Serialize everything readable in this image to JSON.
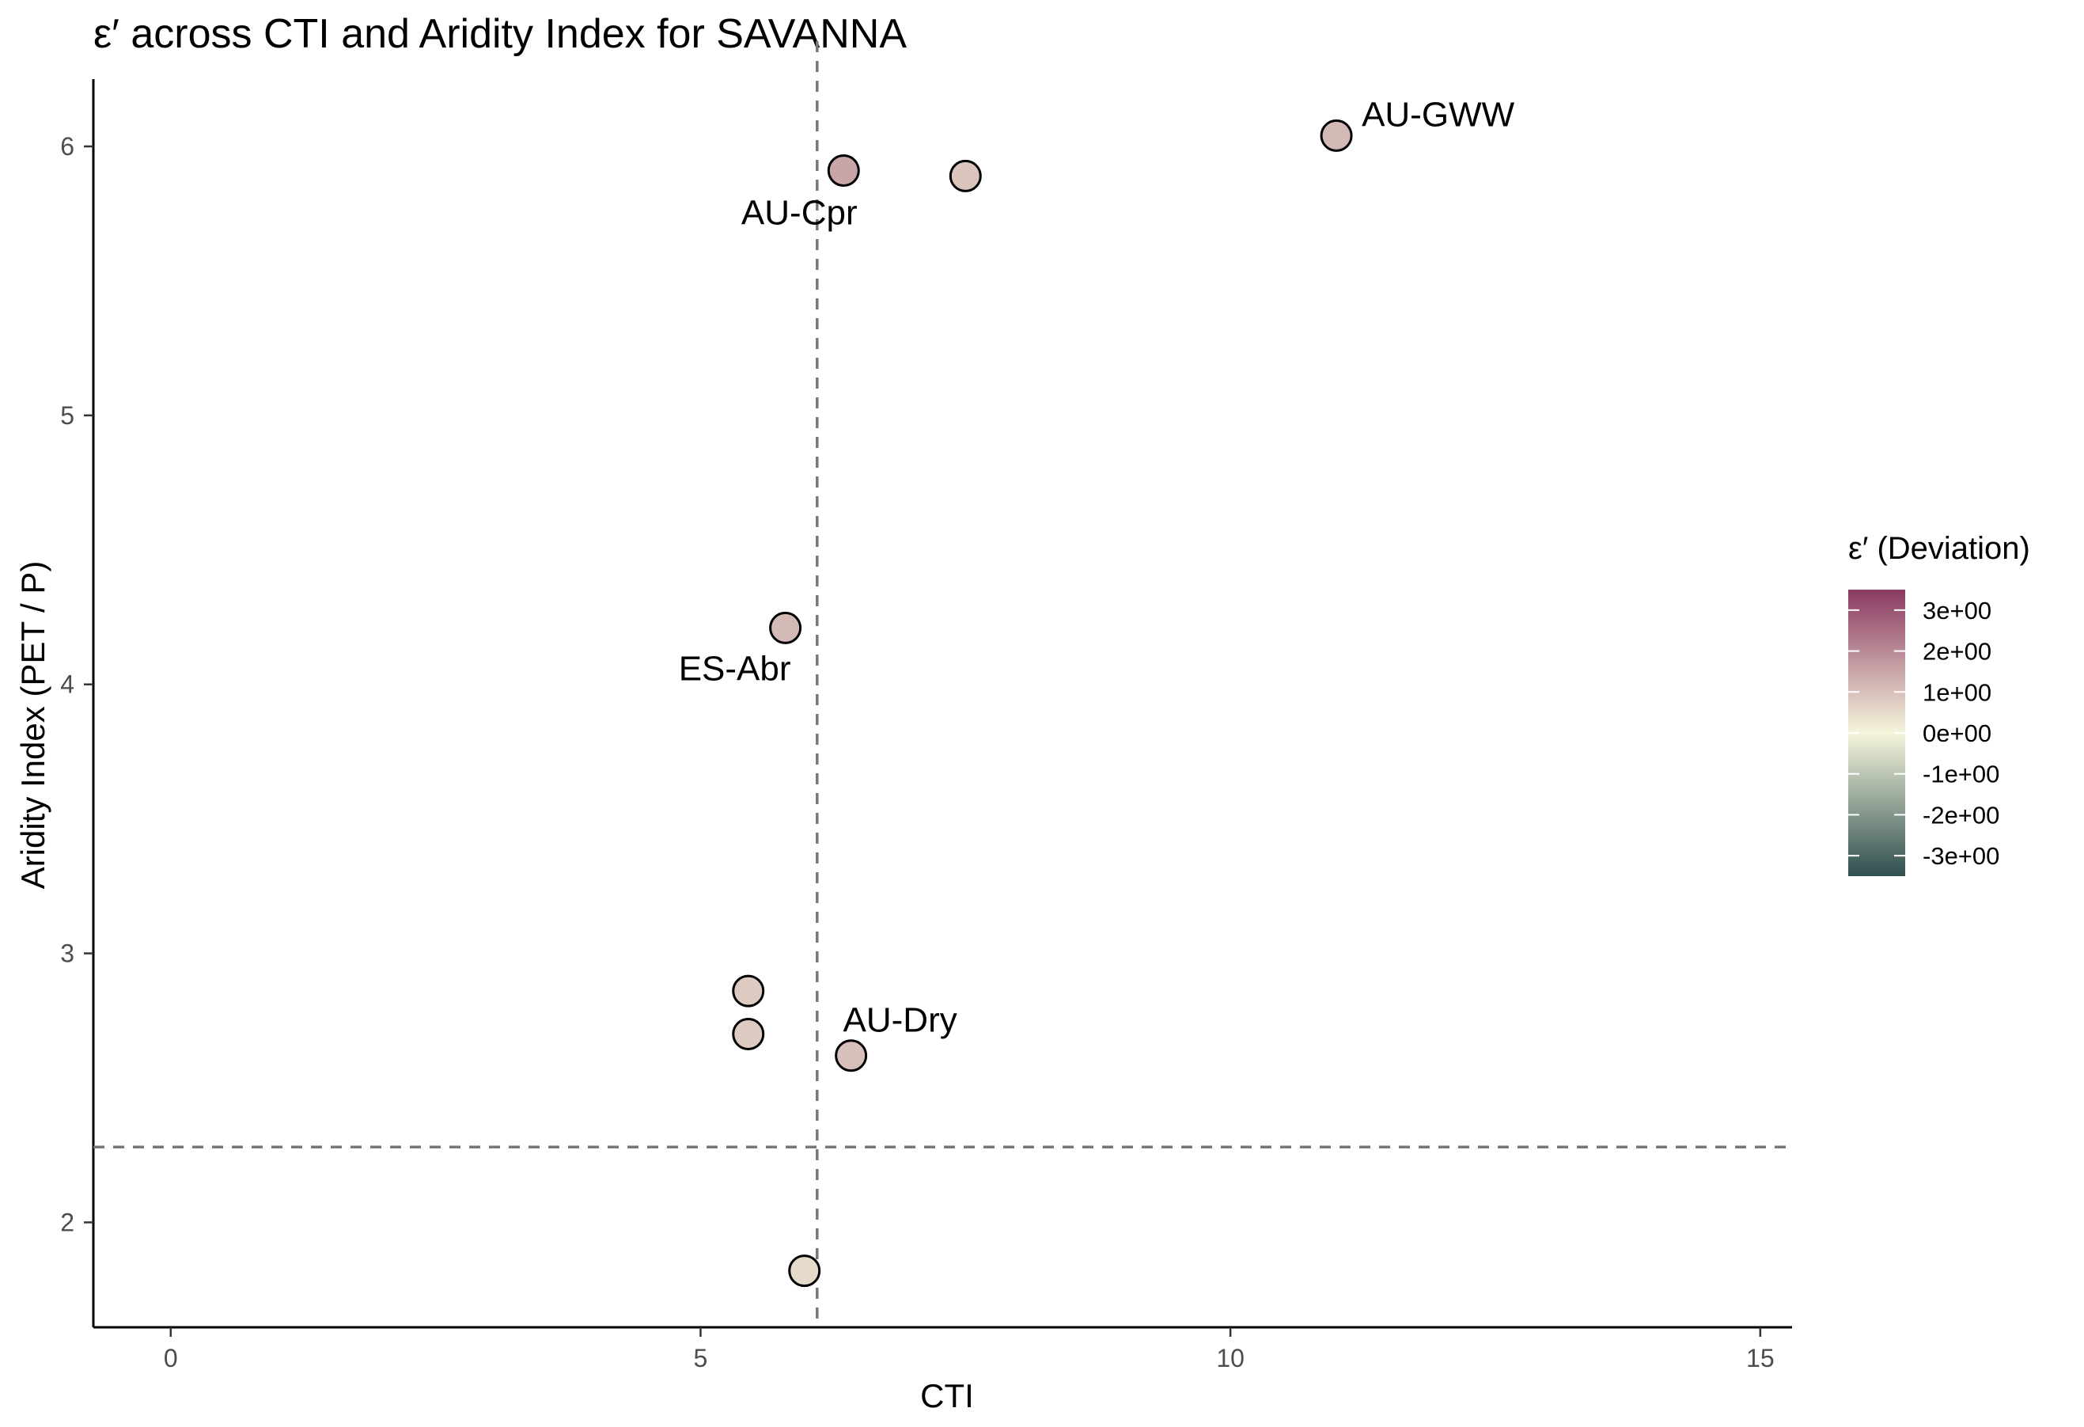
{
  "chart_data": {
    "type": "scatter",
    "title": "ε′ across CTI and Aridity Index for SAVANNA",
    "xlabel": "CTI",
    "ylabel": "Aridity Index (PET / P)",
    "xlim": [
      -0.73,
      15.3
    ],
    "ylim": [
      1.61,
      6.25
    ],
    "xticks": [
      0,
      5,
      10,
      15
    ],
    "yticks": [
      2,
      3,
      4,
      5,
      6
    ],
    "grid": false,
    "reference_lines": {
      "vertical_x": 6.1,
      "horizontal_y": 2.28
    },
    "points": [
      {
        "x": 6.35,
        "y": 5.91,
        "value": 1.5,
        "label": "AU-Cpr"
      },
      {
        "x": 7.5,
        "y": 5.89,
        "value": 0.9,
        "label": ""
      },
      {
        "x": 11.0,
        "y": 6.04,
        "value": 1.1,
        "label": "AU-GWW"
      },
      {
        "x": 5.8,
        "y": 4.21,
        "value": 1.1,
        "label": "ES-Abr"
      },
      {
        "x": 5.45,
        "y": 2.86,
        "value": 0.8,
        "label": ""
      },
      {
        "x": 5.45,
        "y": 2.7,
        "value": 0.8,
        "label": ""
      },
      {
        "x": 6.42,
        "y": 2.62,
        "value": 1.0,
        "label": "AU-Dry"
      },
      {
        "x": 5.98,
        "y": 1.82,
        "value": 0.5,
        "label": ""
      }
    ],
    "legend": {
      "title": "ε′ (Deviation)",
      "placement": "right",
      "range": [
        -3.5,
        3.5
      ],
      "ticks": [
        3,
        2,
        1,
        0,
        -1,
        -2,
        -3
      ],
      "tick_labels": [
        "3e+00",
        "2e+00",
        "1e+00",
        "0e+00",
        "-1e+00",
        "-2e+00",
        "-3e+00"
      ],
      "colors": {
        "high": "#8b3a62",
        "mid": "#f5f5dc",
        "low": "#2f4f4f"
      }
    }
  }
}
